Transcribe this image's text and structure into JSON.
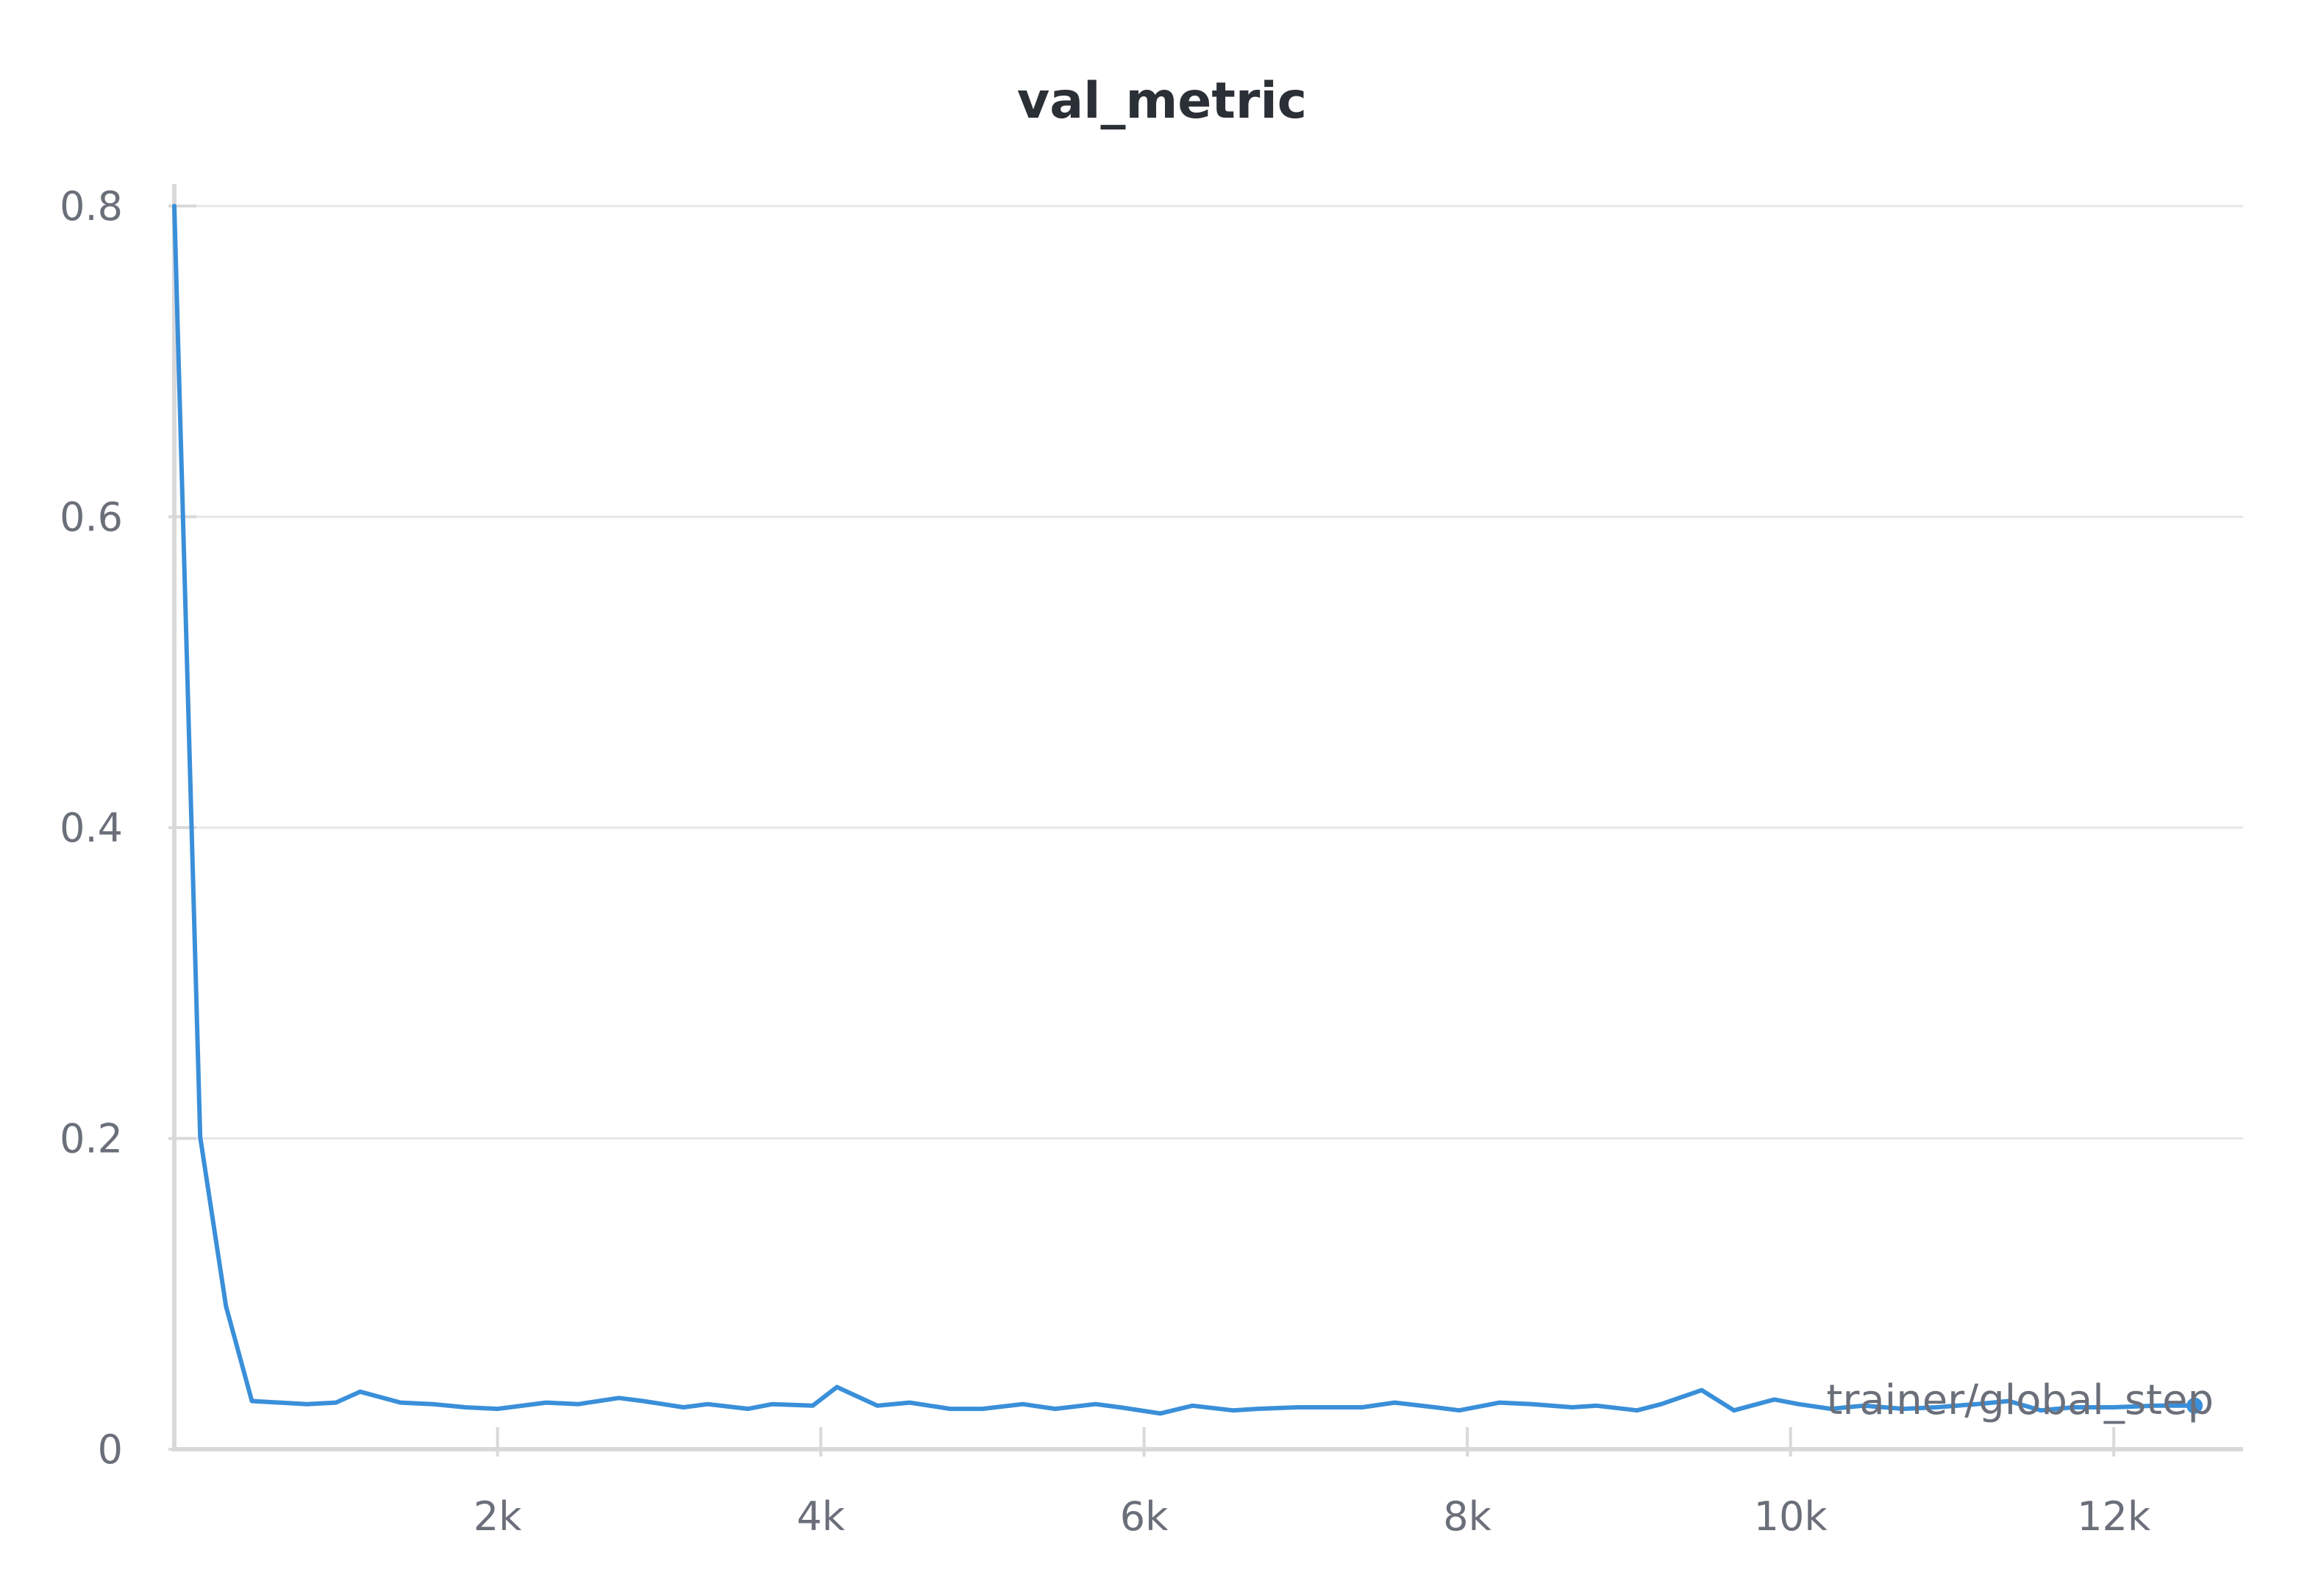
{
  "chart_data": {
    "type": "line",
    "title": "val_metric",
    "xlabel": "trainer/global_step",
    "ylabel": "",
    "xlim": [
      0,
      12800
    ],
    "ylim": [
      0,
      0.8
    ],
    "grid": true,
    "legend": "none",
    "xticks": [
      {
        "value": 2000,
        "label": "2k"
      },
      {
        "value": 4000,
        "label": "4k"
      },
      {
        "value": 6000,
        "label": "6k"
      },
      {
        "value": 8000,
        "label": "8k"
      },
      {
        "value": 10000,
        "label": "10k"
      },
      {
        "value": 12000,
        "label": "12k"
      }
    ],
    "yticks": [
      {
        "value": 0,
        "label": "0"
      },
      {
        "value": 0.2,
        "label": "0.2"
      },
      {
        "value": 0.4,
        "label": "0.4"
      },
      {
        "value": 0.6,
        "label": "0.6"
      },
      {
        "value": 0.8,
        "label": "0.8"
      }
    ],
    "series": [
      {
        "color": "#3a8fd9",
        "x": [
          0,
          160,
          320,
          480,
          820,
          1000,
          1150,
          1400,
          1600,
          1800,
          2000,
          2300,
          2500,
          2750,
          2900,
          3150,
          3300,
          3550,
          3700,
          3950,
          4100,
          4350,
          4550,
          4800,
          5000,
          5250,
          5450,
          5700,
          5850,
          6100,
          6300,
          6550,
          6700,
          6950,
          7100,
          7350,
          7550,
          7800,
          7950,
          8200,
          8400,
          8650,
          8800,
          9050,
          9200,
          9450,
          9650,
          9900,
          10050,
          10250,
          10450,
          10700,
          10900,
          11150,
          11350,
          11550,
          11750,
          12000,
          12250,
          12500
        ],
        "y": [
          0.8,
          0.201,
          0.092,
          0.031,
          0.029,
          0.03,
          0.037,
          0.03,
          0.029,
          0.027,
          0.026,
          0.03,
          0.029,
          0.033,
          0.031,
          0.027,
          0.029,
          0.026,
          0.029,
          0.028,
          0.04,
          0.028,
          0.03,
          0.026,
          0.026,
          0.029,
          0.026,
          0.029,
          0.027,
          0.023,
          0.028,
          0.025,
          0.026,
          0.027,
          0.027,
          0.027,
          0.03,
          0.027,
          0.025,
          0.03,
          0.029,
          0.027,
          0.028,
          0.025,
          0.029,
          0.038,
          0.025,
          0.032,
          0.029,
          0.026,
          0.028,
          0.026,
          0.027,
          0.029,
          0.031,
          0.025,
          0.027,
          0.027,
          0.028,
          0.028
        ]
      }
    ]
  }
}
